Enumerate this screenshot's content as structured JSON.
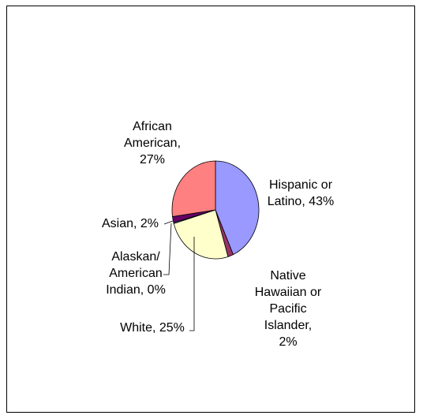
{
  "chart_data": {
    "type": "pie",
    "title": "",
    "slices": [
      {
        "label_lines": [
          "Hispanic or",
          "Latino, 43%"
        ],
        "value": 43,
        "color": "#9999ff"
      },
      {
        "label_lines": [
          "Native",
          "Hawaiian or",
          "Pacific",
          "Islander,",
          "2%"
        ],
        "value": 2,
        "color": "#993366"
      },
      {
        "label_lines": [
          "White, 25%"
        ],
        "value": 25,
        "color": "#ffffcc"
      },
      {
        "label_lines": [
          "Alaskan/",
          "American",
          "Indian, 0%"
        ],
        "value": 0.3,
        "color": "#ccffff"
      },
      {
        "label_lines": [
          "Asian, 2%"
        ],
        "value": 2,
        "color": "#660066"
      },
      {
        "label_lines": [
          "African",
          "American,",
          "27%"
        ],
        "value": 27,
        "color": "#ff8080"
      }
    ],
    "legend": "none"
  }
}
